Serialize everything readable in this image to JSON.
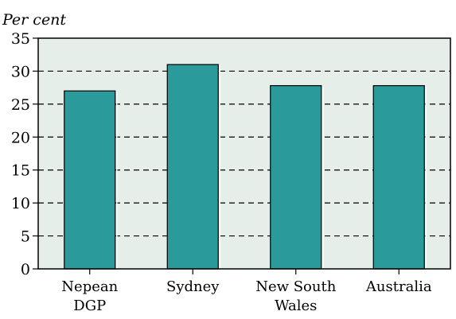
{
  "chart_data": {
    "type": "bar",
    "ylabel": "Per cent",
    "xlabel": "",
    "title": "",
    "categories": [
      [
        "Nepean",
        "DGP"
      ],
      [
        "Sydney"
      ],
      [
        "New South",
        "Wales"
      ],
      [
        "Australia"
      ]
    ],
    "values": [
      27,
      31,
      27.8,
      27.8
    ],
    "ylim": [
      0,
      35
    ],
    "yticks": [
      0,
      5,
      10,
      15,
      20,
      25,
      30,
      35
    ],
    "grid": true,
    "grid_style": "dashed",
    "colors": {
      "bar_fill": "#2b9a9a",
      "plot_background": "#e6eeea",
      "grid": "#000000"
    }
  }
}
